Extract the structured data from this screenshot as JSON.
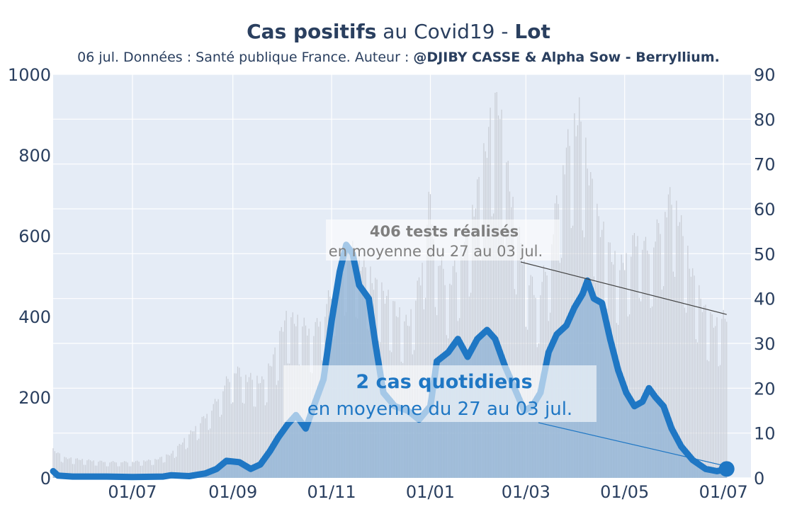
{
  "title": {
    "bold_part": "Cas positifs",
    "middle_part": " au Covid19 - ",
    "location": "Lot"
  },
  "subtitle": {
    "plain_part": "06 jul. Données : Santé publique France. Auteur : ",
    "author_part": "@DJIBY CASSE & Alpha Sow - Berryllium."
  },
  "colors": {
    "plot_background": "#e5ecf6",
    "grid": "#ffffff",
    "cases_line": "#1f77c4",
    "cases_fill": "#8fb3d6",
    "tests_bars": "#c8ccd4",
    "axis_text": "#2a3f5f",
    "tests_annotation_text": "#7f7f7f",
    "cases_annotation_text": "#1f77c4"
  },
  "chart_data": {
    "type": "line",
    "title": "Cas positifs au Covid19 - Lot",
    "x_tick_labels": [
      "01/07",
      "01/09",
      "01/11",
      "01/01",
      "01/03",
      "01/05",
      "01/07"
    ],
    "x_tick_months": [
      "2020-07-01",
      "2020-09-01",
      "2020-11-01",
      "2021-01-01",
      "2021-03-01",
      "2021-05-01",
      "2021-07-01"
    ],
    "x_range": [
      "2020-05-13",
      "2021-07-18"
    ],
    "y_left": {
      "label": "",
      "range": [
        0,
        1000
      ],
      "ticks": [
        "0",
        "200",
        "400",
        "600",
        "800",
        "1000"
      ]
    },
    "y_right": {
      "label": "",
      "range": [
        0,
        90
      ],
      "ticks": [
        "0",
        "10",
        "20",
        "30",
        "40",
        "50",
        "60",
        "70",
        "80",
        "90"
      ]
    },
    "grid": true,
    "series": [
      {
        "name": "tests réalisés",
        "type": "bar",
        "axis": "left",
        "points": [
          [
            "2020-05-13",
            70
          ],
          [
            "2020-05-20",
            50
          ],
          [
            "2020-06-01",
            45
          ],
          [
            "2020-06-15",
            40
          ],
          [
            "2020-07-01",
            40
          ],
          [
            "2020-07-15",
            45
          ],
          [
            "2020-07-25",
            60
          ],
          [
            "2020-08-01",
            90
          ],
          [
            "2020-08-10",
            130
          ],
          [
            "2020-08-20",
            180
          ],
          [
            "2020-08-28",
            240
          ],
          [
            "2020-09-03",
            270
          ],
          [
            "2020-09-10",
            250
          ],
          [
            "2020-09-20",
            240
          ],
          [
            "2020-09-28",
            320
          ],
          [
            "2020-10-03",
            395
          ],
          [
            "2020-10-12",
            390
          ],
          [
            "2020-10-20",
            360
          ],
          [
            "2020-10-28",
            420
          ],
          [
            "2020-11-04",
            500
          ],
          [
            "2020-11-10",
            570
          ],
          [
            "2020-11-15",
            560
          ],
          [
            "2020-11-22",
            520
          ],
          [
            "2020-11-28",
            480
          ],
          [
            "2020-12-05",
            450
          ],
          [
            "2020-12-12",
            410
          ],
          [
            "2020-12-18",
            380
          ],
          [
            "2020-12-26",
            500
          ],
          [
            "2020-12-31",
            700
          ],
          [
            "2021-01-05",
            560
          ],
          [
            "2021-01-12",
            480
          ],
          [
            "2021-01-20",
            560
          ],
          [
            "2021-01-27",
            650
          ],
          [
            "2021-02-03",
            790
          ],
          [
            "2021-02-08",
            900
          ],
          [
            "2021-02-12",
            940
          ],
          [
            "2021-02-16",
            800
          ],
          [
            "2021-02-22",
            650
          ],
          [
            "2021-03-01",
            520
          ],
          [
            "2021-03-08",
            450
          ],
          [
            "2021-03-15",
            540
          ],
          [
            "2021-03-22",
            740
          ],
          [
            "2021-03-29",
            860
          ],
          [
            "2021-04-03",
            900
          ],
          [
            "2021-04-08",
            780
          ],
          [
            "2021-04-14",
            650
          ],
          [
            "2021-04-22",
            560
          ],
          [
            "2021-04-28",
            520
          ],
          [
            "2021-05-05",
            570
          ],
          [
            "2021-05-10",
            620
          ],
          [
            "2021-05-14",
            570
          ],
          [
            "2021-05-20",
            600
          ],
          [
            "2021-05-25",
            660
          ],
          [
            "2021-05-31",
            710
          ],
          [
            "2021-06-05",
            620
          ],
          [
            "2021-06-12",
            500
          ],
          [
            "2021-06-20",
            410
          ],
          [
            "2021-06-27",
            380
          ],
          [
            "2021-07-03",
            405
          ]
        ]
      },
      {
        "name": "cas quotidiens",
        "type": "line",
        "axis": "right",
        "points": [
          [
            "2020-05-13",
            1.5
          ],
          [
            "2020-05-16",
            0.5
          ],
          [
            "2020-05-25",
            0.3
          ],
          [
            "2020-06-15",
            0.3
          ],
          [
            "2020-07-01",
            0.2
          ],
          [
            "2020-07-20",
            0.3
          ],
          [
            "2020-07-25",
            0.6
          ],
          [
            "2020-08-05",
            0.4
          ],
          [
            "2020-08-15",
            1
          ],
          [
            "2020-08-22",
            2
          ],
          [
            "2020-08-28",
            3.8
          ],
          [
            "2020-09-05",
            3.5
          ],
          [
            "2020-09-12",
            2
          ],
          [
            "2020-09-18",
            3
          ],
          [
            "2020-09-24",
            6
          ],
          [
            "2020-09-29",
            9
          ],
          [
            "2020-10-05",
            12
          ],
          [
            "2020-10-10",
            14
          ],
          [
            "2020-10-16",
            11
          ],
          [
            "2020-10-22",
            17
          ],
          [
            "2020-10-27",
            22
          ],
          [
            "2020-11-01",
            35
          ],
          [
            "2020-11-06",
            46
          ],
          [
            "2020-11-10",
            52
          ],
          [
            "2020-11-14",
            50
          ],
          [
            "2020-11-18",
            43
          ],
          [
            "2020-11-24",
            40
          ],
          [
            "2020-11-28",
            30
          ],
          [
            "2020-12-03",
            19
          ],
          [
            "2020-12-10",
            16
          ],
          [
            "2020-12-18",
            15
          ],
          [
            "2020-12-25",
            13
          ],
          [
            "2021-01-01",
            16
          ],
          [
            "2021-01-05",
            26
          ],
          [
            "2021-01-12",
            28
          ],
          [
            "2021-01-18",
            31
          ],
          [
            "2021-01-24",
            27
          ],
          [
            "2021-01-30",
            31
          ],
          [
            "2021-02-05",
            33
          ],
          [
            "2021-02-10",
            31
          ],
          [
            "2021-02-16",
            25
          ],
          [
            "2021-02-22",
            20
          ],
          [
            "2021-02-28",
            15
          ],
          [
            "2021-03-05",
            16
          ],
          [
            "2021-03-10",
            19
          ],
          [
            "2021-03-15",
            28
          ],
          [
            "2021-03-20",
            32
          ],
          [
            "2021-03-26",
            34
          ],
          [
            "2021-03-31",
            38
          ],
          [
            "2021-04-05",
            41
          ],
          [
            "2021-04-08",
            44
          ],
          [
            "2021-04-12",
            40
          ],
          [
            "2021-04-17",
            39
          ],
          [
            "2021-04-22",
            31
          ],
          [
            "2021-04-27",
            24
          ],
          [
            "2021-05-02",
            19
          ],
          [
            "2021-05-07",
            16
          ],
          [
            "2021-05-12",
            17
          ],
          [
            "2021-05-16",
            20
          ],
          [
            "2021-05-20",
            18
          ],
          [
            "2021-05-25",
            16
          ],
          [
            "2021-05-30",
            11
          ],
          [
            "2021-06-05",
            7
          ],
          [
            "2021-06-12",
            4
          ],
          [
            "2021-06-20",
            2
          ],
          [
            "2021-06-27",
            1.5
          ],
          [
            "2021-07-03",
            2
          ]
        ]
      }
    ],
    "annotations": [
      {
        "series": "tests réalisés",
        "value_text": "406 tests réalisés",
        "detail_text": "en moyenne du 27 au 03 jul."
      },
      {
        "series": "cas quotidiens",
        "value_text": "2 cas quotidiens",
        "detail_text": "en moyenne du 27 au 03 jul."
      }
    ]
  }
}
